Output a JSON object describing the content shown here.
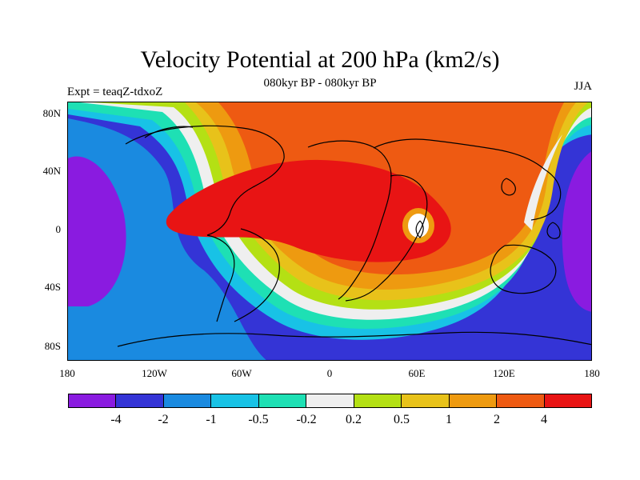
{
  "title": "Velocity Potential at 200 hPa (km2/s)",
  "subtitle": "080kyr BP - 080kyr BP",
  "experiment_label": "Expt = teaqZ-tdxoZ",
  "season_label": "JJA",
  "latitude_labels": [
    "80N",
    "40N",
    "0",
    "40S",
    "80S"
  ],
  "longitude_labels": [
    "180",
    "120W",
    "60W",
    "0",
    "60E",
    "120E",
    "180"
  ],
  "colorbar": {
    "labels": [
      "-4",
      "-2",
      "-1",
      "-0.5",
      "-0.2",
      "0.2",
      "0.5",
      "1",
      "2",
      "4"
    ],
    "colors": [
      "#8a1be0",
      "#3434d6",
      "#1a8ae0",
      "#18c2e6",
      "#1ee0b4",
      "#efefef",
      "#b4e014",
      "#e8c21a",
      "#ee9a10",
      "#ee5a12",
      "#e81414"
    ]
  },
  "map_colors": {
    "ocean_land_outline": "#000000"
  }
}
